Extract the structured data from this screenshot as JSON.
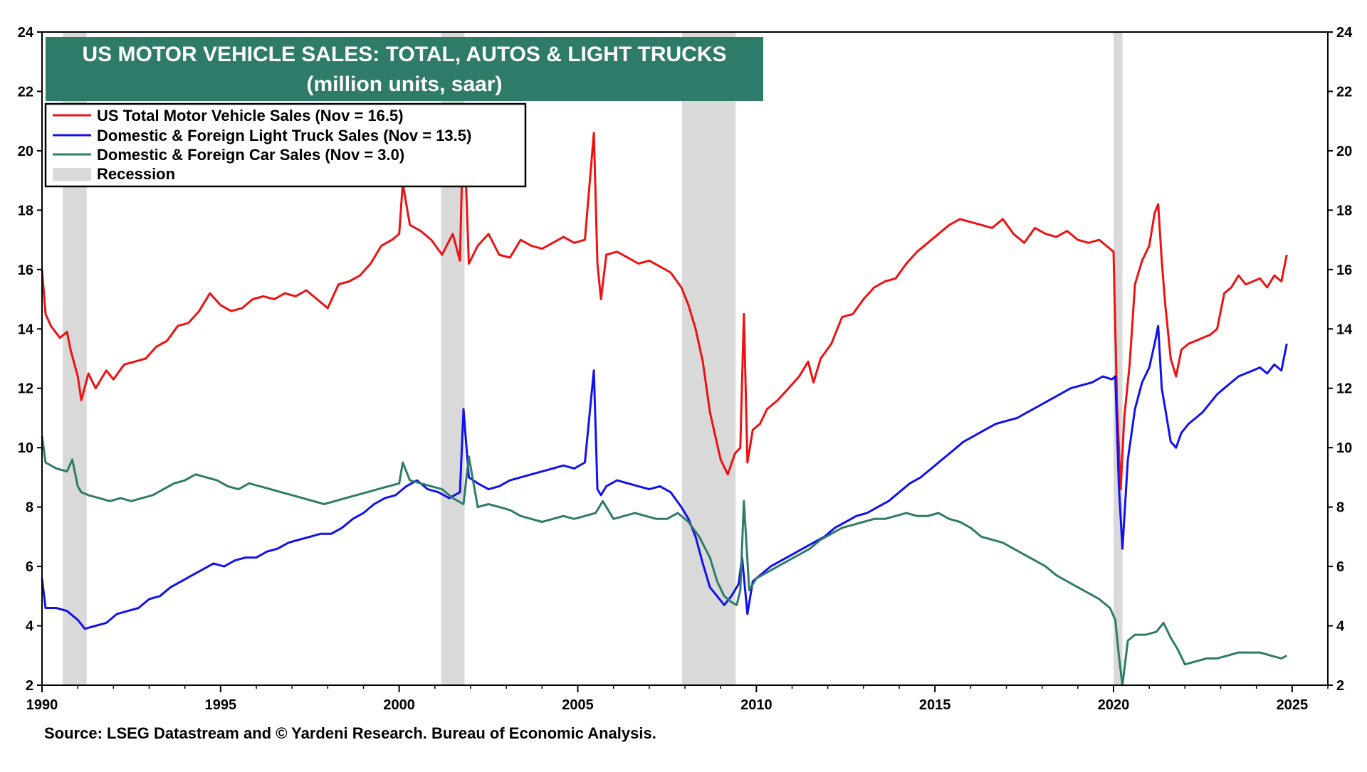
{
  "chart_data": {
    "type": "line",
    "title": "US MOTOR VEHICLE SALES: TOTAL, AUTOS & LIGHT TRUCKS",
    "subtitle": "(million units, saar)",
    "source": "Source: LSEG Datastream and © Yardeni Research. Bureau of Economic Analysis.",
    "xlim": [
      1990,
      2026
    ],
    "ylim": [
      2,
      24
    ],
    "x_ticks": [
      1990,
      1995,
      2000,
      2005,
      2010,
      2015,
      2020,
      2025
    ],
    "y_ticks": [
      2,
      4,
      6,
      8,
      10,
      12,
      14,
      16,
      18,
      20,
      22,
      24
    ],
    "grid": false,
    "legend_position": "top-left",
    "colors": {
      "total": "#ee1111",
      "trucks": "#1111ee",
      "cars": "#2e7b6a",
      "recession": "#d9d9d9",
      "title_bg": "#2e7b6a"
    },
    "recessions": [
      [
        1990.58,
        1991.25
      ],
      [
        2001.17,
        2001.83
      ],
      [
        2007.92,
        2009.42
      ],
      [
        2020.0,
        2020.25
      ]
    ],
    "legend": [
      {
        "label": "US Total Motor Vehicle Sales (Nov = 16.5)",
        "key": "total",
        "kind": "line"
      },
      {
        "label": "Domestic & Foreign Light Truck Sales (Nov = 13.5)",
        "key": "trucks",
        "kind": "line"
      },
      {
        "label": "Domestic & Foreign Car Sales  (Nov = 3.0)",
        "key": "cars",
        "kind": "line"
      },
      {
        "label": "Recession",
        "key": "recession",
        "kind": "box"
      }
    ],
    "series": [
      {
        "name": "US Total Motor Vehicle Sales (Nov = 16.5)",
        "key": "total",
        "x": [
          1990.0,
          1990.1,
          1990.25,
          1990.5,
          1990.7,
          1990.8,
          1991.0,
          1991.1,
          1991.3,
          1991.5,
          1991.8,
          1992.0,
          1992.3,
          1992.6,
          1992.9,
          1993.2,
          1993.5,
          1993.8,
          1994.1,
          1994.4,
          1994.7,
          1995.0,
          1995.3,
          1995.6,
          1995.9,
          1996.2,
          1996.5,
          1996.8,
          1997.1,
          1997.4,
          1997.7,
          1998.0,
          1998.3,
          1998.6,
          1998.9,
          1999.2,
          1999.5,
          1999.8,
          2000.0,
          2000.1,
          2000.3,
          2000.6,
          2000.9,
          2001.2,
          2001.5,
          2001.7,
          2001.8,
          2001.95,
          2002.2,
          2002.5,
          2002.8,
          2003.1,
          2003.4,
          2003.7,
          2004.0,
          2004.3,
          2004.6,
          2004.9,
          2005.2,
          2005.45,
          2005.55,
          2005.65,
          2005.8,
          2006.1,
          2006.4,
          2006.7,
          2007.0,
          2007.3,
          2007.6,
          2007.9,
          2008.1,
          2008.3,
          2008.5,
          2008.7,
          2008.85,
          2009.0,
          2009.2,
          2009.4,
          2009.55,
          2009.65,
          2009.75,
          2009.9,
          2010.1,
          2010.3,
          2010.6,
          2010.9,
          2011.2,
          2011.45,
          2011.6,
          2011.8,
          2012.1,
          2012.4,
          2012.7,
          2013.0,
          2013.3,
          2013.6,
          2013.9,
          2014.2,
          2014.5,
          2014.8,
          2015.1,
          2015.4,
          2015.7,
          2016.0,
          2016.3,
          2016.6,
          2016.9,
          2017.2,
          2017.5,
          2017.8,
          2018.1,
          2018.4,
          2018.7,
          2019.0,
          2019.3,
          2019.6,
          2019.9,
          2020.0,
          2020.1,
          2020.2,
          2020.3,
          2020.45,
          2020.6,
          2020.8,
          2021.0,
          2021.15,
          2021.25,
          2021.35,
          2021.45,
          2021.6,
          2021.75,
          2021.9,
          2022.1,
          2022.3,
          2022.5,
          2022.7,
          2022.9,
          2023.1,
          2023.3,
          2023.5,
          2023.7,
          2023.9,
          2024.1,
          2024.3,
          2024.5,
          2024.7,
          2024.85
        ],
        "values": [
          16.0,
          14.5,
          14.1,
          13.7,
          13.9,
          13.3,
          12.4,
          11.6,
          12.5,
          12.0,
          12.6,
          12.3,
          12.8,
          12.9,
          13.0,
          13.4,
          13.6,
          14.1,
          14.2,
          14.6,
          15.2,
          14.8,
          14.6,
          14.7,
          15.0,
          15.1,
          15.0,
          15.2,
          15.1,
          15.3,
          15.0,
          14.7,
          15.5,
          15.6,
          15.8,
          16.2,
          16.8,
          17.0,
          17.2,
          18.9,
          17.5,
          17.3,
          17.0,
          16.5,
          17.2,
          16.3,
          21.3,
          16.2,
          16.8,
          17.2,
          16.5,
          16.4,
          17.0,
          16.8,
          16.7,
          16.9,
          17.1,
          16.9,
          17.0,
          20.6,
          16.2,
          15.0,
          16.5,
          16.6,
          16.4,
          16.2,
          16.3,
          16.1,
          15.9,
          15.4,
          14.8,
          14.0,
          12.9,
          11.2,
          10.4,
          9.6,
          9.1,
          9.8,
          10.0,
          14.5,
          9.5,
          10.6,
          10.8,
          11.3,
          11.6,
          12.0,
          12.4,
          12.9,
          12.2,
          13.0,
          13.5,
          14.4,
          14.5,
          15.0,
          15.4,
          15.6,
          15.7,
          16.2,
          16.6,
          16.9,
          17.2,
          17.5,
          17.7,
          17.6,
          17.5,
          17.4,
          17.7,
          17.2,
          16.9,
          17.4,
          17.2,
          17.1,
          17.3,
          17.0,
          16.9,
          17.0,
          16.7,
          16.6,
          11.4,
          8.6,
          11.0,
          12.8,
          15.5,
          16.3,
          16.8,
          17.9,
          18.2,
          16.3,
          14.8,
          13.0,
          12.4,
          13.3,
          13.5,
          13.6,
          13.7,
          13.8,
          14.0,
          15.2,
          15.4,
          15.8,
          15.5,
          15.6,
          15.7,
          15.4,
          15.8,
          15.6,
          16.5
        ]
      },
      {
        "name": "Domestic & Foreign Light Truck Sales (Nov = 13.5)",
        "key": "trucks",
        "x": [
          1990.0,
          1990.1,
          1990.4,
          1990.7,
          1991.0,
          1991.2,
          1991.5,
          1991.8,
          1992.1,
          1992.4,
          1992.7,
          1993.0,
          1993.3,
          1993.6,
          1993.9,
          1994.2,
          1994.5,
          1994.8,
          1995.1,
          1995.4,
          1995.7,
          1996.0,
          1996.3,
          1996.6,
          1996.9,
          1997.2,
          1997.5,
          1997.8,
          1998.1,
          1998.4,
          1998.7,
          1999.0,
          1999.3,
          1999.6,
          1999.9,
          2000.2,
          2000.5,
          2000.8,
          2001.1,
          2001.4,
          2001.7,
          2001.8,
          2001.95,
          2002.2,
          2002.5,
          2002.8,
          2003.1,
          2003.4,
          2003.7,
          2004.0,
          2004.3,
          2004.6,
          2004.9,
          2005.2,
          2005.45,
          2005.55,
          2005.65,
          2005.8,
          2006.1,
          2006.4,
          2006.7,
          2007.0,
          2007.3,
          2007.6,
          2007.9,
          2008.1,
          2008.3,
          2008.5,
          2008.7,
          2008.9,
          2009.1,
          2009.3,
          2009.5,
          2009.6,
          2009.75,
          2009.9,
          2010.1,
          2010.4,
          2010.7,
          2011.0,
          2011.3,
          2011.6,
          2011.9,
          2012.2,
          2012.5,
          2012.8,
          2013.1,
          2013.4,
          2013.7,
          2014.0,
          2014.3,
          2014.6,
          2014.9,
          2015.2,
          2015.5,
          2015.8,
          2016.1,
          2016.4,
          2016.7,
          2017.0,
          2017.3,
          2017.6,
          2017.9,
          2018.2,
          2018.5,
          2018.8,
          2019.1,
          2019.4,
          2019.7,
          2019.95,
          2020.05,
          2020.15,
          2020.25,
          2020.4,
          2020.6,
          2020.8,
          2021.0,
          2021.15,
          2021.25,
          2021.35,
          2021.45,
          2021.6,
          2021.75,
          2021.9,
          2022.1,
          2022.3,
          2022.5,
          2022.7,
          2022.9,
          2023.1,
          2023.3,
          2023.5,
          2023.7,
          2023.9,
          2024.1,
          2024.3,
          2024.5,
          2024.7,
          2024.85
        ],
        "values": [
          5.6,
          4.6,
          4.6,
          4.5,
          4.2,
          3.9,
          4.0,
          4.1,
          4.4,
          4.5,
          4.6,
          4.9,
          5.0,
          5.3,
          5.5,
          5.7,
          5.9,
          6.1,
          6.0,
          6.2,
          6.3,
          6.3,
          6.5,
          6.6,
          6.8,
          6.9,
          7.0,
          7.1,
          7.1,
          7.3,
          7.6,
          7.8,
          8.1,
          8.3,
          8.4,
          8.7,
          8.9,
          8.6,
          8.5,
          8.3,
          8.5,
          11.3,
          9.0,
          8.8,
          8.6,
          8.7,
          8.9,
          9.0,
          9.1,
          9.2,
          9.3,
          9.4,
          9.3,
          9.5,
          12.6,
          8.6,
          8.4,
          8.7,
          8.9,
          8.8,
          8.7,
          8.6,
          8.7,
          8.5,
          8.0,
          7.6,
          7.0,
          6.1,
          5.3,
          5.0,
          4.7,
          5.0,
          5.4,
          6.3,
          4.4,
          5.5,
          5.7,
          6.0,
          6.2,
          6.4,
          6.6,
          6.8,
          7.0,
          7.3,
          7.5,
          7.7,
          7.8,
          8.0,
          8.2,
          8.5,
          8.8,
          9.0,
          9.3,
          9.6,
          9.9,
          10.2,
          10.4,
          10.6,
          10.8,
          10.9,
          11.0,
          11.2,
          11.4,
          11.6,
          11.8,
          12.0,
          12.1,
          12.2,
          12.4,
          12.3,
          12.4,
          8.7,
          6.6,
          9.6,
          11.3,
          12.2,
          12.7,
          13.5,
          14.1,
          12.0,
          11.3,
          10.2,
          10.0,
          10.5,
          10.8,
          11.0,
          11.2,
          11.5,
          11.8,
          12.0,
          12.2,
          12.4,
          12.5,
          12.6,
          12.7,
          12.5,
          12.8,
          12.6,
          13.5
        ]
      },
      {
        "name": "Domestic & Foreign Car Sales  (Nov = 3.0)",
        "key": "cars",
        "x": [
          1990.0,
          1990.1,
          1990.4,
          1990.7,
          1990.85,
          1991.0,
          1991.1,
          1991.3,
          1991.6,
          1991.9,
          1992.2,
          1992.5,
          1992.8,
          1993.1,
          1993.4,
          1993.7,
          1994.0,
          1994.3,
          1994.6,
          1994.9,
          1995.2,
          1995.5,
          1995.8,
          1996.1,
          1996.4,
          1996.7,
          1997.0,
          1997.3,
          1997.6,
          1997.9,
          1998.2,
          1998.5,
          1998.8,
          1999.1,
          1999.4,
          1999.7,
          2000.0,
          2000.1,
          2000.3,
          2000.6,
          2000.9,
          2001.2,
          2001.5,
          2001.8,
          2001.95,
          2002.2,
          2002.5,
          2002.8,
          2003.1,
          2003.4,
          2003.7,
          2004.0,
          2004.3,
          2004.6,
          2004.9,
          2005.2,
          2005.5,
          2005.7,
          2006.0,
          2006.3,
          2006.6,
          2006.9,
          2007.2,
          2007.5,
          2007.8,
          2008.1,
          2008.4,
          2008.7,
          2008.9,
          2009.1,
          2009.3,
          2009.45,
          2009.55,
          2009.65,
          2009.8,
          2010.0,
          2010.3,
          2010.6,
          2010.9,
          2011.2,
          2011.5,
          2011.8,
          2012.1,
          2012.4,
          2012.7,
          2013.0,
          2013.3,
          2013.6,
          2013.9,
          2014.2,
          2014.5,
          2014.8,
          2015.1,
          2015.4,
          2015.7,
          2016.0,
          2016.3,
          2016.6,
          2016.9,
          2017.2,
          2017.5,
          2017.8,
          2018.1,
          2018.4,
          2018.7,
          2019.0,
          2019.3,
          2019.6,
          2019.9,
          2020.05,
          2020.15,
          2020.25,
          2020.4,
          2020.6,
          2020.9,
          2021.2,
          2021.4,
          2021.6,
          2021.8,
          2022.0,
          2022.3,
          2022.6,
          2022.9,
          2023.2,
          2023.5,
          2023.8,
          2024.1,
          2024.4,
          2024.7,
          2024.85
        ],
        "values": [
          10.4,
          9.5,
          9.3,
          9.2,
          9.6,
          8.7,
          8.5,
          8.4,
          8.3,
          8.2,
          8.3,
          8.2,
          8.3,
          8.4,
          8.6,
          8.8,
          8.9,
          9.1,
          9.0,
          8.9,
          8.7,
          8.6,
          8.8,
          8.7,
          8.6,
          8.5,
          8.4,
          8.3,
          8.2,
          8.1,
          8.2,
          8.3,
          8.4,
          8.5,
          8.6,
          8.7,
          8.8,
          9.5,
          8.9,
          8.8,
          8.7,
          8.6,
          8.3,
          8.1,
          9.7,
          8.0,
          8.1,
          8.0,
          7.9,
          7.7,
          7.6,
          7.5,
          7.6,
          7.7,
          7.6,
          7.7,
          7.8,
          8.2,
          7.6,
          7.7,
          7.8,
          7.7,
          7.6,
          7.6,
          7.8,
          7.5,
          7.0,
          6.3,
          5.5,
          5.0,
          4.8,
          4.7,
          5.2,
          8.2,
          5.2,
          5.6,
          5.8,
          6.0,
          6.2,
          6.4,
          6.6,
          6.9,
          7.1,
          7.3,
          7.4,
          7.5,
          7.6,
          7.6,
          7.7,
          7.8,
          7.7,
          7.7,
          7.8,
          7.6,
          7.5,
          7.3,
          7.0,
          6.9,
          6.8,
          6.6,
          6.4,
          6.2,
          6.0,
          5.7,
          5.5,
          5.3,
          5.1,
          4.9,
          4.6,
          4.2,
          3.0,
          2.0,
          3.5,
          3.7,
          3.7,
          3.8,
          4.1,
          3.6,
          3.2,
          2.7,
          2.8,
          2.9,
          2.9,
          3.0,
          3.1,
          3.1,
          3.1,
          3.0,
          2.9,
          3.0
        ]
      }
    ]
  }
}
